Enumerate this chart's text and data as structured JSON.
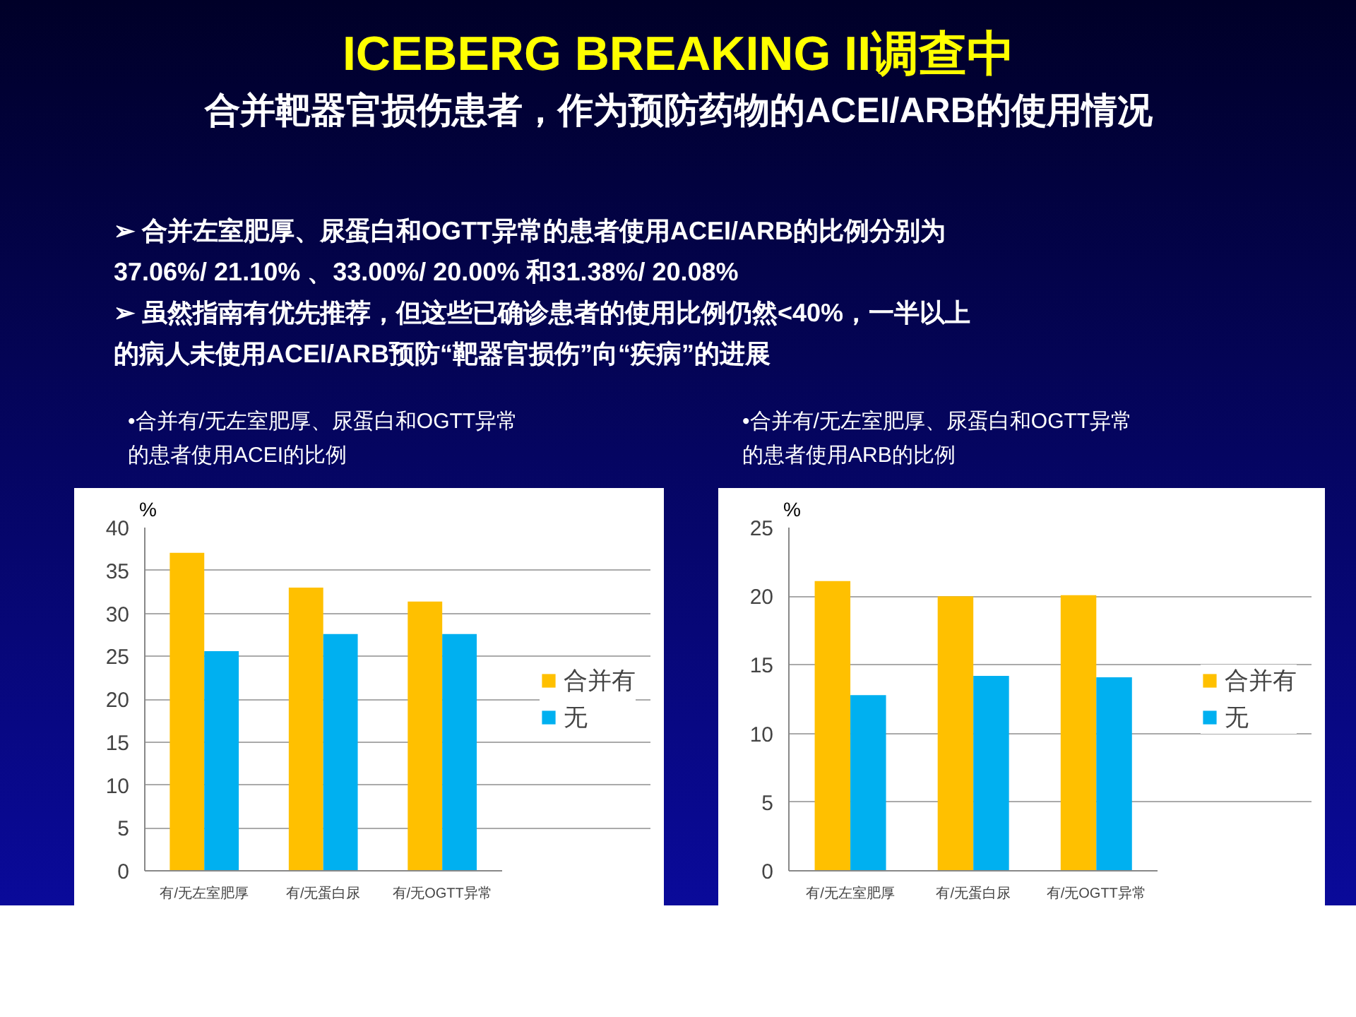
{
  "chart_data": [
    {
      "type": "bar",
      "title": "•合并有/无左室肥厚、尿蛋白和OGTT异常的患者使用ACEI的比例",
      "ylabel": "%",
      "annotations": [
        "ICEBERG BREAKING II调查中",
        "合并靶器官损伤患者，作为预防药物的ACEI/ARB的使用情况",
        "➢  合并左室肥厚、尿蛋白和OGTT异常的患者使用ACEI/ARB的比例分别为",
        "37.06%/ 21.10% 、33.00%/ 20.00% 和31.38%/ 20.08%",
        "➢  虽然指南有优先推荐，但这些已确诊患者的使用比例仍然<40%，一半以上",
        "的病人未使用ACEI/ARB预防“靶器官损伤”向“疾病”的进展"
      ],
      "categories": [
        "有/无左室肥厚",
        "有/无蛋白尿",
        "有/无OGTT异常"
      ],
      "series": [
        {
          "name": "合并有",
          "color": "#ffc000",
          "values": [
            37.06,
            33.0,
            31.38
          ]
        },
        {
          "name": "无",
          "color": "#00b0f0",
          "values": [
            25.6,
            27.6,
            27.6
          ]
        }
      ],
      "ylim": [
        0,
        40
      ],
      "yticks": [
        0,
        5,
        10,
        15,
        20,
        25,
        30,
        35,
        40
      ],
      "grid": "y",
      "legend": "right"
    },
    {
      "type": "bar",
      "title": "•合并有/无左室肥厚、尿蛋白和OGTT异常的患者使用ARB的比例",
      "ylabel": "%",
      "categories": [
        "有/无左室肥厚",
        "有/无蛋白尿",
        "有/无OGTT异常"
      ],
      "series": [
        {
          "name": "合并有",
          "color": "#ffc000",
          "values": [
            21.1,
            20.0,
            20.08
          ]
        },
        {
          "name": "无",
          "color": "#00b0f0",
          "values": [
            12.8,
            14.2,
            14.1
          ]
        }
      ],
      "ylim": [
        0,
        25
      ],
      "yticks": [
        0,
        5,
        10,
        15,
        20,
        25
      ],
      "grid": "y",
      "legend": "right"
    }
  ]
}
